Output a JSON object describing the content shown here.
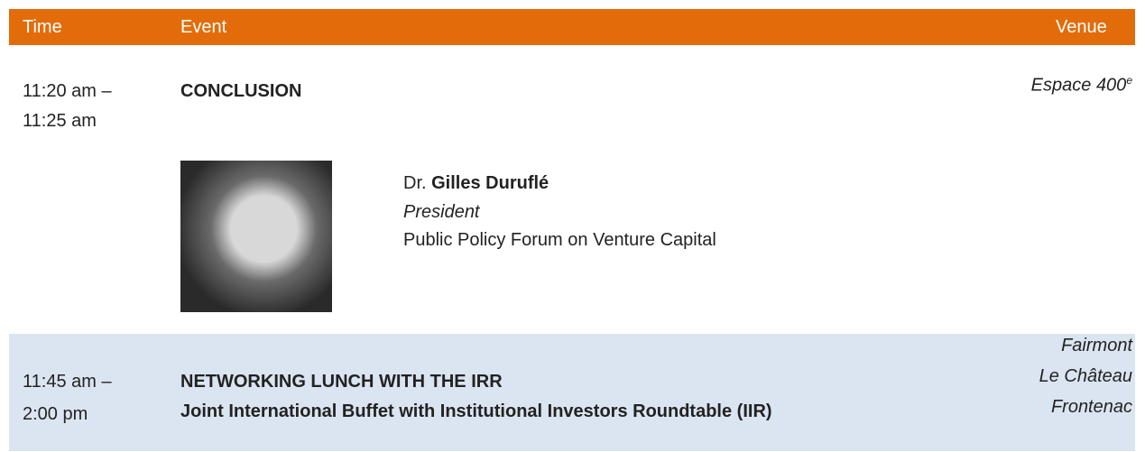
{
  "header": {
    "time": "Time",
    "event": "Event",
    "venue": "Venue"
  },
  "rows": [
    {
      "time": [
        "11:20 am –",
        "11:25 am"
      ],
      "event": [
        "CONCLUSION"
      ],
      "venue": {
        "text": "Espace 400",
        "sup": "e"
      },
      "speaker": {
        "prefix": "Dr.",
        "name": "Gilles Duruflé",
        "role": "President",
        "organization": "Public Policy Forum on Venture Capital"
      }
    },
    {
      "time": [
        "11:45 am –",
        "2:00 pm"
      ],
      "event": [
        "NETWORKING LUNCH WITH THE IRR",
        "Joint International Buffet with Institutional Investors Roundtable (IIR)"
      ],
      "venue": {
        "lines": [
          "Fairmont",
          "Le Château",
          "Frontenac"
        ]
      }
    }
  ]
}
